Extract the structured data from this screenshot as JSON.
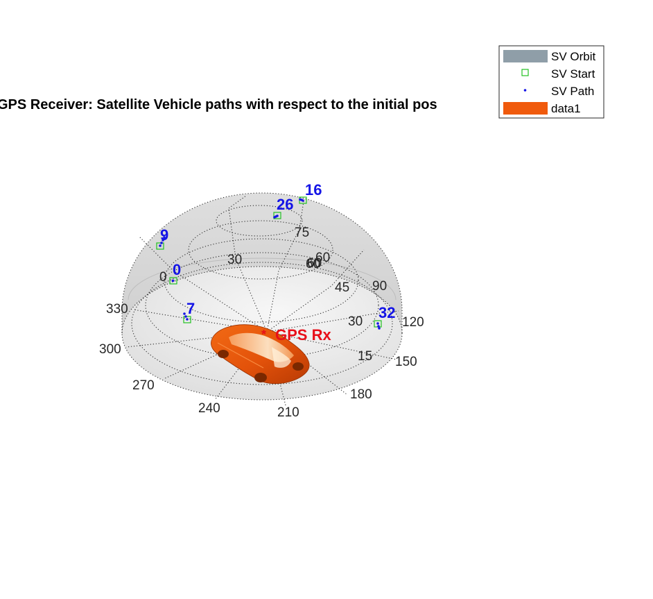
{
  "title": "GPS Receiver: Satellite Vehicle paths with respect to the initial pos",
  "receiver": {
    "label": "GPS Rx",
    "color": "#e8101a"
  },
  "colors": {
    "sv_label": "#1414e6",
    "sv_start": "#22c022",
    "sv_path": "#1414e6",
    "orbit": "#8f9ea8",
    "vehicle": "#f05a0c"
  },
  "azimuth_labels": [
    "0",
    "30",
    "60",
    "90",
    "120",
    "150",
    "180",
    "210",
    "240",
    "270",
    "300",
    "330"
  ],
  "elevation_labels": [
    "15",
    "30",
    "45",
    "60",
    "75"
  ],
  "extra_elevation_label": "60",
  "satellites": [
    {
      "id": "16"
    },
    {
      "id": "26"
    },
    {
      "id": "9"
    },
    {
      "id": "0"
    },
    {
      "id": "7"
    },
    {
      "id": "32"
    }
  ],
  "legend": {
    "placement": "top-right",
    "items": [
      {
        "label": "SV Orbit",
        "marker": "patch",
        "color": "#8f9ea8"
      },
      {
        "label": "SV Start",
        "marker": "square",
        "color": "#22c022"
      },
      {
        "label": "SV Path",
        "marker": "dot",
        "color": "#1414e6"
      },
      {
        "label": "data1",
        "marker": "patch",
        "color": "#f05a0c"
      }
    ]
  },
  "vehicle_icon": "car-icon"
}
